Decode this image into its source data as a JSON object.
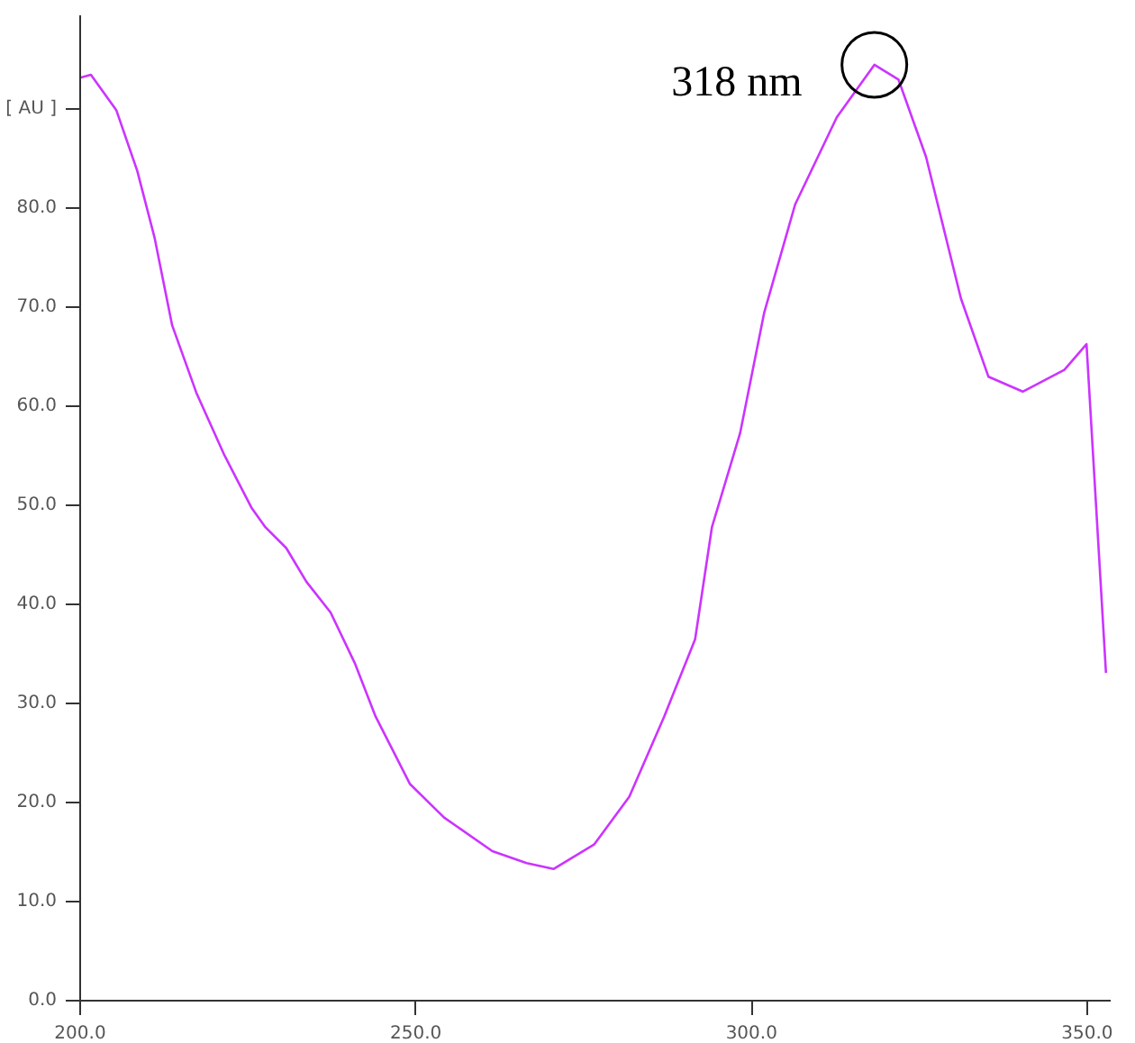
{
  "chart_data": {
    "type": "line",
    "x": [
      200,
      201.6,
      205.4,
      208.5,
      211.1,
      213.7,
      217.3,
      221.4,
      225.5,
      227.6,
      230.7,
      233.7,
      237.3,
      240.9,
      244,
      249.1,
      254.2,
      261.4,
      266.5,
      270.5,
      276.6,
      281.8,
      287,
      291.6,
      294.1,
      298.3,
      301.9,
      306.5,
      312.7,
      318.3,
      321.9,
      326,
      331.2,
      335.3,
      340.4,
      346.6,
      349.9,
      352.8
    ],
    "series": [
      {
        "color": "#cc33ff",
        "values": [
          93.2,
          93.5,
          89.9,
          83.8,
          77.0,
          68.2,
          61.4,
          55.2,
          49.8,
          47.8,
          45.7,
          42.3,
          39.2,
          34.1,
          28.7,
          21.9,
          18.5,
          15.1,
          13.9,
          13.3,
          15.8,
          20.6,
          28.7,
          36.5,
          47.8,
          57.3,
          69.5,
          80.4,
          89.2,
          94.5,
          93.0,
          85.2,
          70.9,
          63.0,
          61.5,
          63.7,
          66.3,
          33.1
        ]
      }
    ],
    "xlim": [
      200,
      353.5
    ],
    "ylim": [
      0,
      99.5
    ],
    "xticks": [
      {
        "value": 200,
        "label": "200.0"
      },
      {
        "value": 250,
        "label": "250.0"
      },
      {
        "value": 300,
        "label": "300.0"
      },
      {
        "value": 350,
        "label": "350.0"
      }
    ],
    "yticks": [
      {
        "value": 0,
        "label": "0.0"
      },
      {
        "value": 10,
        "label": "10.0"
      },
      {
        "value": 20,
        "label": "20.0"
      },
      {
        "value": 30,
        "label": "30.0"
      },
      {
        "value": 40,
        "label": "40.0"
      },
      {
        "value": 50,
        "label": "50.0"
      },
      {
        "value": 60,
        "label": "60.0"
      },
      {
        "value": 70,
        "label": "70.0"
      },
      {
        "value": 80,
        "label": "80.0"
      },
      {
        "value": 90,
        "label": "[ AU ]"
      }
    ],
    "annotations": [
      {
        "text": "318 nm",
        "x": 318.3,
        "y": 94.5
      }
    ],
    "grid": false,
    "marker": "none",
    "line_style": "solid"
  }
}
